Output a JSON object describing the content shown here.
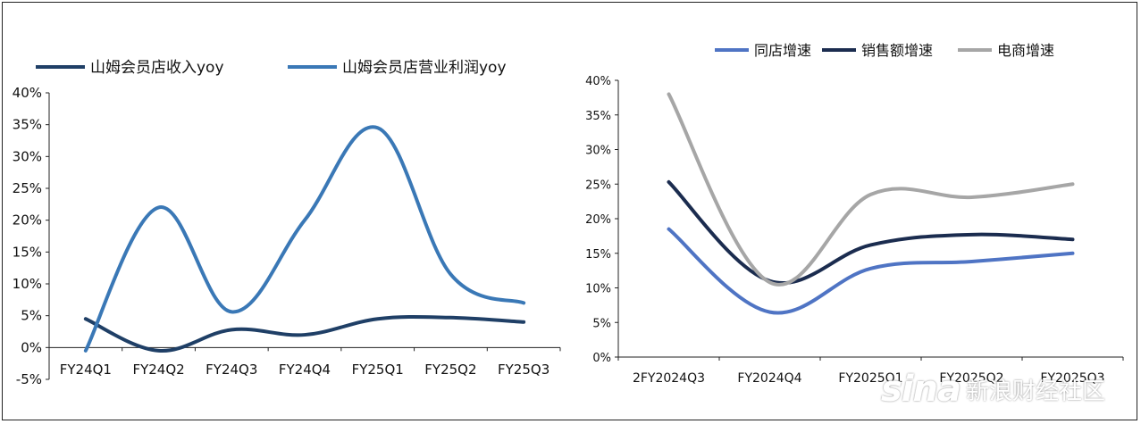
{
  "chart_data": [
    {
      "type": "line",
      "categories": [
        "FY24Q1",
        "FY24Q2",
        "FY24Q3",
        "FY24Q4",
        "FY25Q1",
        "FY25Q2",
        "FY25Q3"
      ],
      "series": [
        {
          "name": "山姆会员店收入yoy",
          "values": [
            4.5,
            -0.5,
            2.8,
            2.0,
            4.5,
            4.7,
            4.0
          ],
          "color": "#1f3f66"
        },
        {
          "name": "山姆会员店营业利润yoy",
          "values": [
            -0.5,
            22.0,
            5.6,
            20.0,
            34.5,
            11.5,
            7.0
          ],
          "color": "#3a78b6"
        }
      ],
      "ylim": [
        -5,
        40
      ],
      "yticks": [
        "-5%",
        "0%",
        "5%",
        "10%",
        "15%",
        "20%",
        "25%",
        "30%",
        "35%",
        "40%"
      ],
      "grid": false,
      "legend": "top"
    },
    {
      "type": "line",
      "categories": [
        "2FY2024Q3",
        "FY2024Q4",
        "FY2025Q1",
        "FY2025Q2",
        "FY2025Q3"
      ],
      "series": [
        {
          "name": "同店增速",
          "values": [
            18.5,
            6.5,
            12.8,
            13.8,
            15.0
          ],
          "color": "#4f74c4"
        },
        {
          "name": "销售额增速",
          "values": [
            25.3,
            11.0,
            16.2,
            17.7,
            17.0
          ],
          "color": "#1b2c4f"
        },
        {
          "name": "电商增速",
          "values": [
            38.0,
            10.8,
            23.5,
            23.1,
            25.0
          ],
          "color": "#a6a6a6"
        }
      ],
      "ylim": [
        0,
        40
      ],
      "yticks": [
        "0%",
        "5%",
        "10%",
        "15%",
        "20%",
        "25%",
        "30%",
        "35%",
        "40%"
      ],
      "grid": false,
      "legend": "top"
    }
  ],
  "watermark": {
    "brand": "sina",
    "text": "新浪财经社区"
  }
}
